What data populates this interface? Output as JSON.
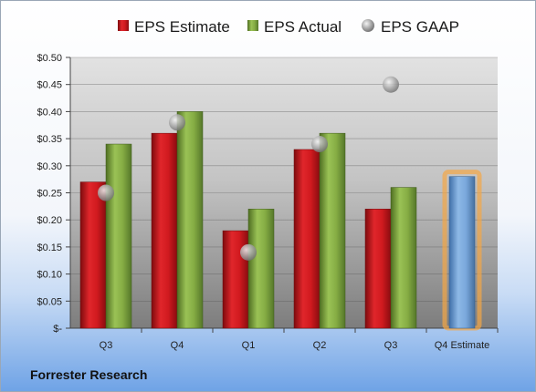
{
  "company": "Forrester Research",
  "colors": {
    "estimate": "#c0161b",
    "actual": "#78a13a",
    "gaap": "#9a9a9a",
    "future_estimate": "#6f9fd6",
    "highlight": "#f4a646"
  },
  "chart_data": {
    "type": "bar",
    "categories": [
      "Q3",
      "Q4",
      "Q1",
      "Q2",
      "Q3",
      "Q4 Estimate"
    ],
    "series": [
      {
        "name": "EPS Estimate",
        "values": [
          0.27,
          0.36,
          0.18,
          0.33,
          0.22,
          null
        ]
      },
      {
        "name": "EPS Actual",
        "values": [
          0.34,
          0.4,
          0.22,
          0.36,
          0.26,
          null
        ]
      },
      {
        "name": "EPS GAAP",
        "kind": "point",
        "values": [
          0.25,
          0.38,
          0.14,
          0.34,
          0.45,
          null
        ]
      }
    ],
    "forward_estimate": {
      "category": "Q4 Estimate",
      "value": 0.28
    },
    "ylim": [
      0,
      0.5
    ],
    "yticks": [
      0,
      0.05,
      0.1,
      0.15,
      0.2,
      0.25,
      0.3,
      0.35,
      0.4,
      0.45,
      0.5
    ],
    "ytick_labels": [
      "$-",
      "$0.05",
      "$0.10",
      "$0.15",
      "$0.20",
      "$0.25",
      "$0.30",
      "$0.35",
      "$0.40",
      "$0.45",
      "$0.50"
    ],
    "grid": true,
    "legend_position": "top"
  }
}
